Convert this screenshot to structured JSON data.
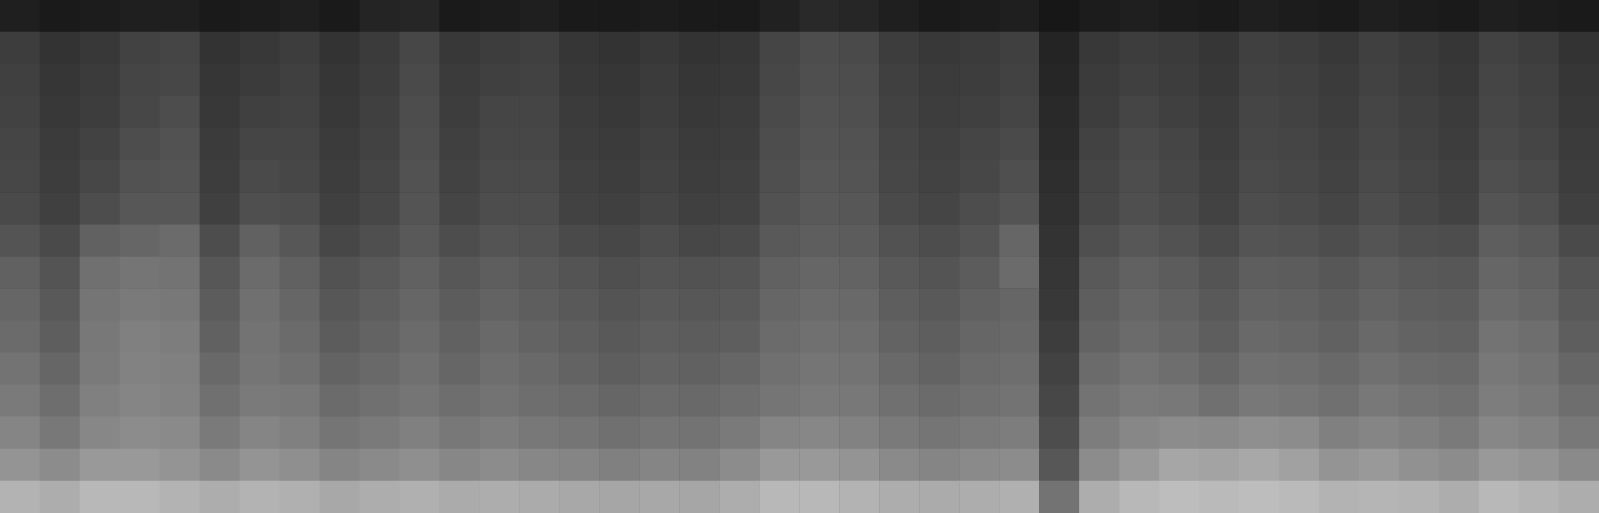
{
  "chart_data": {
    "type": "heatmap",
    "tick_labels": false,
    "color_range": [
      0,
      100
    ],
    "cells": [
      [
        12,
        10,
        11,
        12,
        12,
        10,
        11,
        12,
        10,
        14,
        15,
        10,
        11,
        12,
        10,
        10,
        11,
        10,
        10,
        13,
        16,
        15,
        12,
        10,
        11,
        12,
        9,
        11,
        12,
        11,
        10,
        12,
        11,
        10,
        12,
        11,
        10,
        12,
        11,
        10
      ],
      [
        24,
        20,
        22,
        26,
        27,
        20,
        22,
        24,
        20,
        23,
        28,
        22,
        24,
        25,
        21,
        20,
        22,
        20,
        21,
        27,
        30,
        29,
        24,
        22,
        23,
        25,
        14,
        22,
        24,
        23,
        21,
        25,
        24,
        22,
        25,
        23,
        21,
        26,
        24,
        20
      ],
      [
        25,
        21,
        23,
        27,
        28,
        21,
        23,
        25,
        21,
        24,
        29,
        23,
        25,
        26,
        22,
        21,
        23,
        21,
        22,
        28,
        31,
        30,
        25,
        23,
        24,
        26,
        15,
        23,
        25,
        24,
        22,
        26,
        25,
        23,
        26,
        24,
        22,
        27,
        25,
        21
      ],
      [
        26,
        22,
        24,
        28,
        30,
        22,
        25,
        26,
        22,
        25,
        30,
        24,
        27,
        27,
        23,
        22,
        24,
        22,
        23,
        29,
        32,
        31,
        26,
        24,
        25,
        27,
        16,
        24,
        27,
        25,
        23,
        27,
        26,
        24,
        27,
        25,
        23,
        28,
        26,
        22
      ],
      [
        27,
        23,
        26,
        30,
        32,
        23,
        27,
        27,
        23,
        26,
        31,
        25,
        28,
        28,
        24,
        23,
        25,
        23,
        24,
        30,
        33,
        32,
        27,
        25,
        27,
        29,
        17,
        26,
        29,
        27,
        24,
        28,
        27,
        25,
        28,
        26,
        24,
        29,
        27,
        23
      ],
      [
        28,
        24,
        28,
        32,
        33,
        24,
        29,
        28,
        24,
        27,
        32,
        26,
        29,
        29,
        25,
        24,
        26,
        24,
        25,
        31,
        34,
        33,
        28,
        26,
        28,
        31,
        18,
        27,
        30,
        28,
        25,
        29,
        28,
        26,
        29,
        27,
        25,
        31,
        29,
        24
      ],
      [
        29,
        25,
        30,
        34,
        34,
        25,
        31,
        30,
        25,
        28,
        33,
        27,
        30,
        30,
        26,
        25,
        27,
        25,
        26,
        32,
        35,
        34,
        29,
        27,
        30,
        33,
        19,
        28,
        31,
        29,
        26,
        30,
        29,
        27,
        30,
        28,
        26,
        33,
        31,
        25
      ],
      [
        33,
        29,
        38,
        40,
        42,
        30,
        38,
        34,
        28,
        31,
        35,
        30,
        33,
        32,
        29,
        28,
        30,
        28,
        29,
        35,
        37,
        36,
        32,
        30,
        33,
        40,
        20,
        31,
        34,
        32,
        29,
        33,
        32,
        30,
        33,
        31,
        30,
        37,
        35,
        29
      ],
      [
        38,
        33,
        44,
        46,
        45,
        34,
        42,
        38,
        32,
        35,
        38,
        34,
        37,
        35,
        33,
        31,
        33,
        32,
        33,
        38,
        40,
        39,
        35,
        33,
        36,
        42,
        21,
        35,
        38,
        36,
        33,
        37,
        36,
        34,
        37,
        35,
        34,
        40,
        38,
        33
      ],
      [
        40,
        35,
        46,
        48,
        47,
        36,
        44,
        40,
        34,
        37,
        40,
        36,
        39,
        37,
        35,
        33,
        35,
        34,
        35,
        40,
        42,
        41,
        37,
        35,
        38,
        40,
        22,
        37,
        40,
        38,
        35,
        39,
        38,
        36,
        39,
        37,
        36,
        42,
        40,
        35
      ],
      [
        42,
        37,
        47,
        50,
        49,
        38,
        45,
        42,
        36,
        39,
        42,
        38,
        41,
        39,
        37,
        35,
        37,
        36,
        37,
        42,
        44,
        43,
        39,
        37,
        40,
        41,
        24,
        39,
        42,
        40,
        37,
        41,
        40,
        38,
        41,
        39,
        38,
        45,
        43,
        37
      ],
      [
        45,
        40,
        48,
        51,
        50,
        41,
        46,
        44,
        39,
        41,
        44,
        40,
        43,
        41,
        39,
        37,
        39,
        38,
        40,
        44,
        46,
        45,
        41,
        39,
        42,
        43,
        26,
        42,
        45,
        43,
        40,
        44,
        43,
        41,
        44,
        42,
        41,
        47,
        45,
        40
      ],
      [
        48,
        43,
        50,
        52,
        51,
        44,
        48,
        47,
        42,
        44,
        46,
        43,
        45,
        43,
        42,
        40,
        42,
        41,
        43,
        46,
        48,
        47,
        44,
        42,
        44,
        45,
        28,
        45,
        48,
        47,
        44,
        47,
        46,
        44,
        47,
        45,
        44,
        49,
        47,
        43
      ],
      [
        52,
        47,
        53,
        55,
        54,
        48,
        52,
        50,
        46,
        48,
        50,
        47,
        49,
        47,
        46,
        44,
        46,
        45,
        48,
        52,
        53,
        51,
        48,
        46,
        48,
        49,
        30,
        49,
        53,
        55,
        54,
        56,
        55,
        50,
        52,
        50,
        48,
        53,
        51,
        47
      ],
      [
        58,
        55,
        60,
        60,
        58,
        54,
        58,
        56,
        52,
        54,
        56,
        53,
        55,
        53,
        52,
        50,
        52,
        51,
        55,
        60,
        60,
        58,
        54,
        52,
        54,
        55,
        34,
        55,
        60,
        65,
        64,
        66,
        63,
        58,
        60,
        57,
        55,
        60,
        58,
        54
      ],
      [
        70,
        68,
        72,
        72,
        70,
        68,
        70,
        69,
        66,
        68,
        69,
        67,
        68,
        67,
        66,
        65,
        66,
        65,
        68,
        72,
        72,
        70,
        68,
        67,
        68,
        69,
        45,
        68,
        72,
        74,
        73,
        74,
        73,
        70,
        71,
        70,
        68,
        72,
        70,
        68
      ]
    ]
  }
}
